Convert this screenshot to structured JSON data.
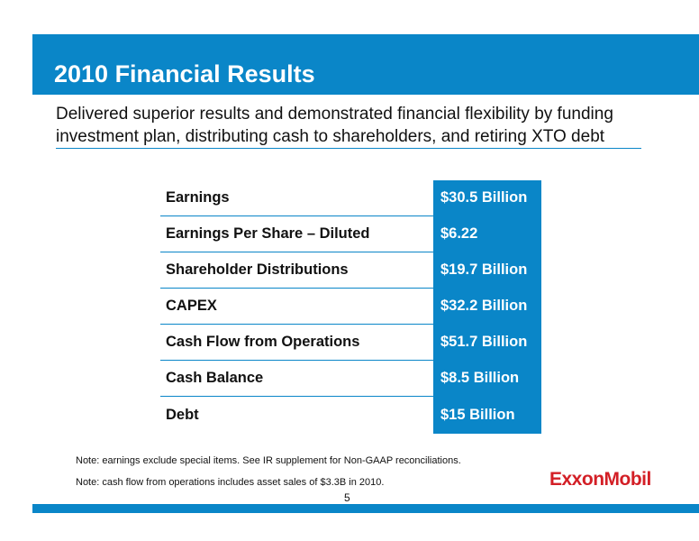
{
  "title": "2010 Financial Results",
  "subtitle": "Delivered superior results and demonstrated financial flexibility by funding investment plan, distributing cash to shareholders, and retiring XTO debt",
  "results": [
    {
      "label": "Earnings",
      "value": "$30.5 Billion"
    },
    {
      "label": "Earnings Per Share – Diluted",
      "value": "$6.22"
    },
    {
      "label": "Shareholder Distributions",
      "value": "$19.7 Billion"
    },
    {
      "label": "CAPEX",
      "value": "$32.2 Billion"
    },
    {
      "label": "Cash Flow from Operations",
      "value": "$51.7 Billion"
    },
    {
      "label": "Cash Balance",
      "value": "$8.5 Billion"
    },
    {
      "label": "Debt",
      "value": "$15 Billion"
    }
  ],
  "notes": [
    "Note: earnings exclude special items. See IR supplement for Non-GAAP reconciliations.",
    "Note: cash flow from operations includes asset sales of $3.3B in 2010."
  ],
  "logo_text": "ExxonMobil",
  "page_number": "5",
  "colors": {
    "brand_blue": "#0a86c8",
    "logo_red": "#d31f26"
  }
}
